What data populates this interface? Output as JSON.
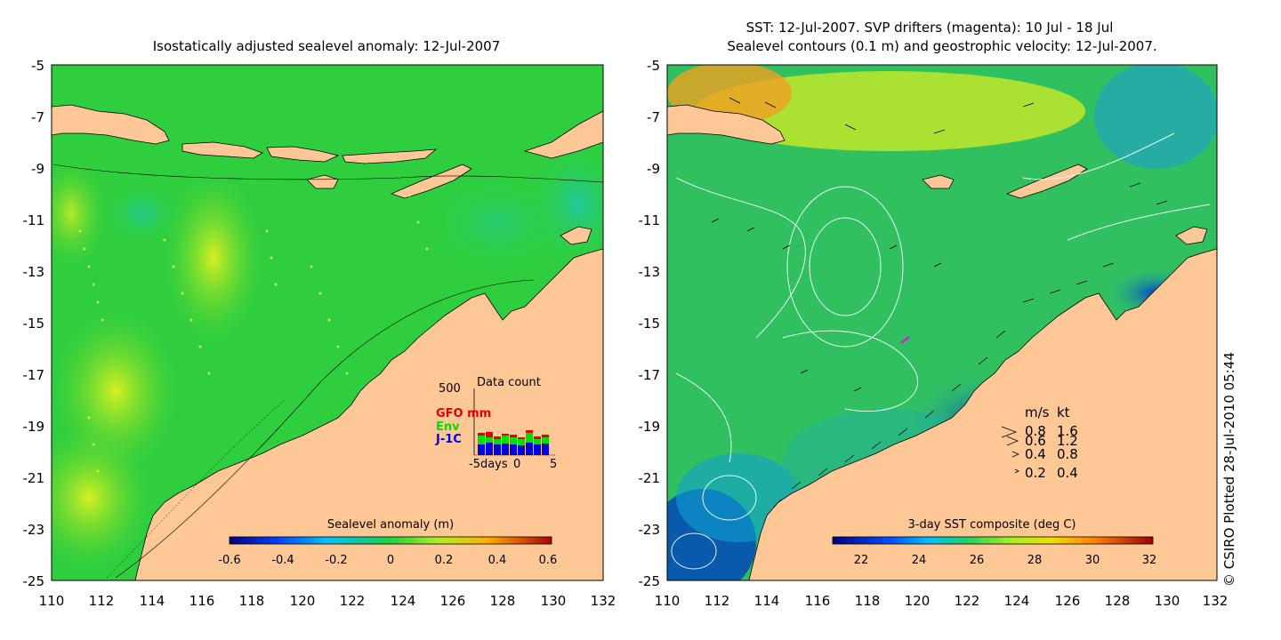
{
  "left_panel": {
    "title": "Isostatically adjusted sealevel anomaly: 12-Jul-2007",
    "y_ticks": [
      "-5",
      "-7",
      "-9",
      "-11",
      "-13",
      "-15",
      "-17",
      "-19",
      "-21",
      "-23",
      "-25"
    ],
    "x_ticks": [
      "110",
      "112",
      "114",
      "116",
      "118",
      "120",
      "122",
      "124",
      "126",
      "128",
      "130",
      "132"
    ],
    "colorbar": {
      "label": "Sealevel anomaly (m)",
      "ticks": [
        "-0.6",
        "-0.4",
        "-0.2",
        "0",
        "0.2",
        "0.4",
        "0.6"
      ]
    },
    "data_count": {
      "title": "Data count",
      "y_max_label": "500",
      "legend": [
        {
          "label": "GFO mm",
          "color": "#e00000"
        },
        {
          "label": "Env",
          "color": "#00e000"
        },
        {
          "label": "J-1C",
          "color": "#0000e0"
        }
      ],
      "x_label_left": "-5days",
      "x_label_mid": "0",
      "x_label_right": "5"
    }
  },
  "right_panel": {
    "title_line1": "SST: 12-Jul-2007. SVP drifters (magenta): 10 Jul - 18 Jul",
    "title_line2": "Sealevel contours (0.1 m) and geostrophic velocity: 12-Jul-2007.",
    "y_ticks": [
      "-5",
      "-7",
      "-9",
      "-11",
      "-13",
      "-15",
      "-17",
      "-19",
      "-21",
      "-23",
      "-25"
    ],
    "x_ticks": [
      "110",
      "112",
      "114",
      "116",
      "118",
      "120",
      "122",
      "124",
      "126",
      "128",
      "130",
      "132"
    ],
    "colorbar": {
      "label": "3-day SST composite (deg C)",
      "ticks": [
        "22",
        "24",
        "26",
        "28",
        "30",
        "32"
      ]
    },
    "velocity_legend": {
      "header_ms": "m/s",
      "header_kt": "kt",
      "rows": [
        {
          "ms": "0.8",
          "kt": "1.6"
        },
        {
          "ms": "0.6",
          "kt": "1.2"
        },
        {
          "ms": "0.4",
          "kt": "0.8"
        },
        {
          "ms": "0.2",
          "kt": "0.4"
        }
      ]
    }
  },
  "credit": "© CSIRO Plotted 28-Jul-2010 05:44",
  "colors": {
    "land": "#fdc896",
    "ocean_green": "#2fce3f",
    "ocean_light": "#55dd35"
  }
}
